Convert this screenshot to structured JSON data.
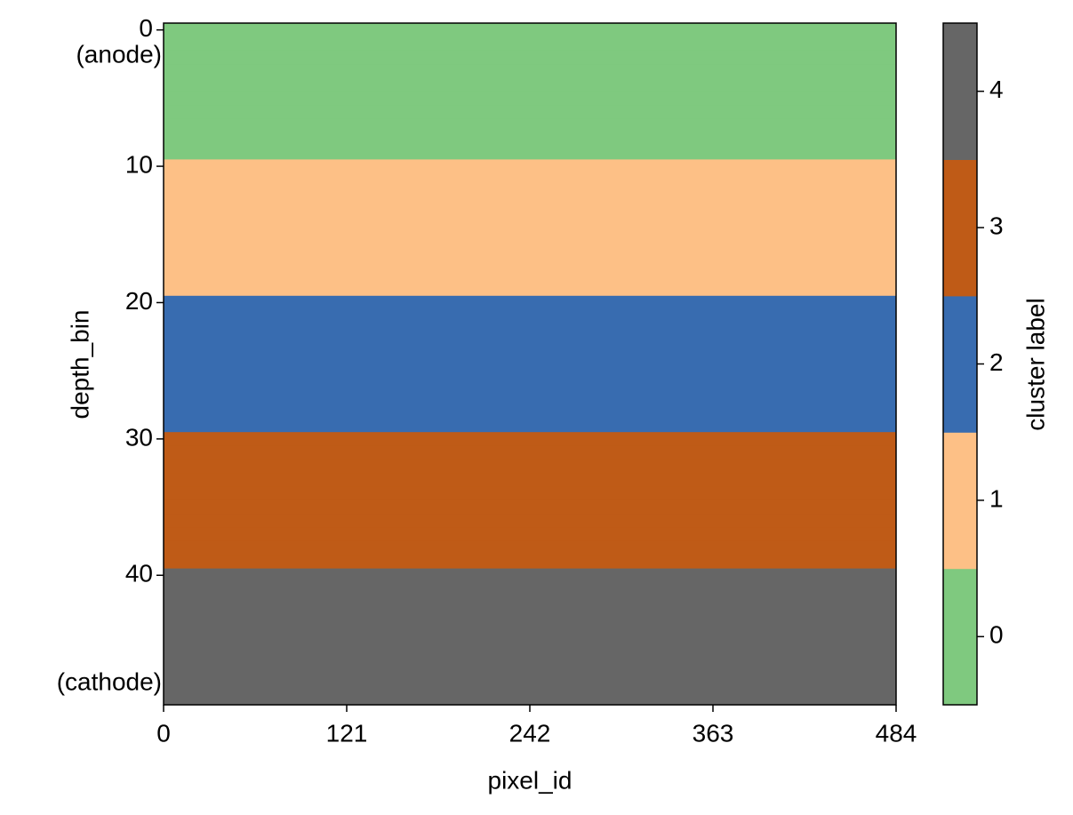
{
  "chart_data": {
    "type": "heatmap",
    "x_label": "pixel_id",
    "y_label": "depth_bin",
    "annotations": [
      "(anode)",
      "(cathode)"
    ],
    "xlim": [
      0,
      484
    ],
    "xticks": [
      0,
      121,
      242,
      363,
      484
    ],
    "ylim": [
      -0.5,
      49.5
    ],
    "yticks": [
      0,
      10,
      20,
      30,
      40
    ],
    "y_inverted": true,
    "values": [
      0,
      0,
      0,
      0,
      0,
      0,
      0,
      0,
      0,
      0,
      1,
      1,
      1,
      1,
      1,
      1,
      1,
      1,
      1,
      1,
      2,
      2,
      2,
      2,
      2,
      2,
      2,
      2,
      2,
      2,
      3,
      3,
      3,
      3,
      3,
      3,
      3,
      3,
      3,
      3,
      4,
      4,
      4,
      4,
      4,
      4,
      4,
      4,
      4,
      4
    ],
    "colorbar": {
      "label": "cluster label",
      "lim": [
        -0.5,
        4.5
      ],
      "ticks": [
        0,
        1,
        2,
        3,
        4
      ],
      "colors": [
        "#7fc97f",
        "#fdc086",
        "#386cb0",
        "#bf5b17",
        "#666666"
      ]
    }
  }
}
